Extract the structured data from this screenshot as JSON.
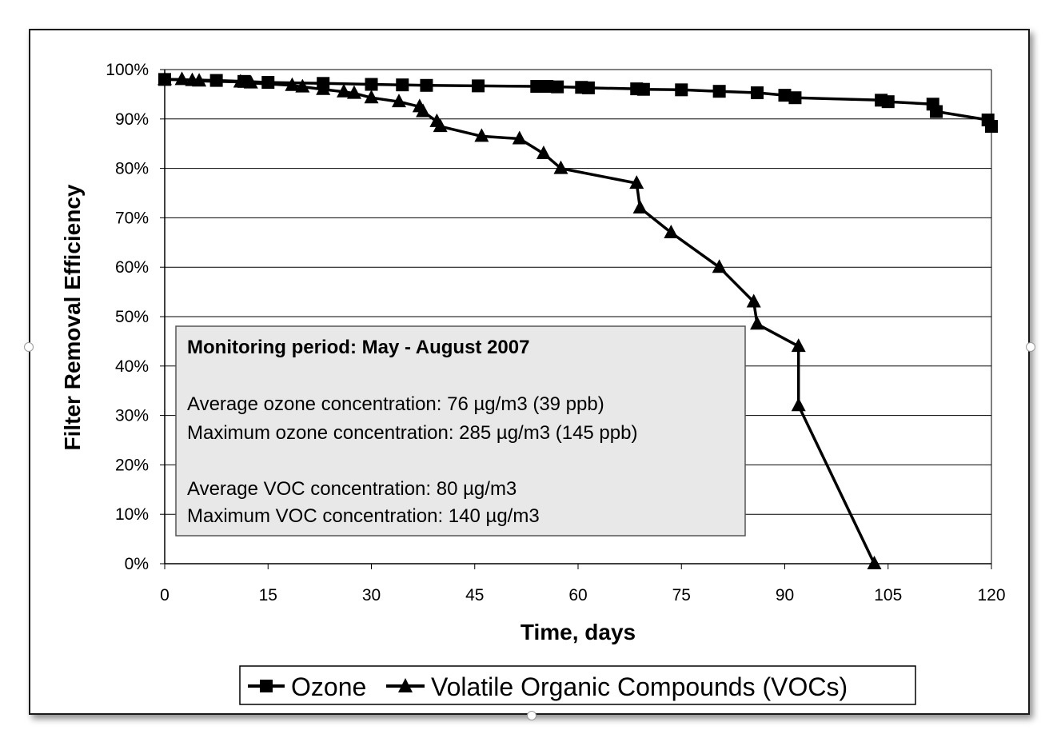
{
  "chart_data": {
    "type": "line",
    "title": "",
    "xlabel": "Time, days",
    "ylabel": "Filter Removal Efficiency",
    "xlim": [
      0,
      120
    ],
    "ylim": [
      0,
      100
    ],
    "x_ticks": [
      0,
      15,
      30,
      45,
      60,
      75,
      90,
      105,
      120
    ],
    "x_tick_labels": [
      "0",
      "15",
      "30",
      "45",
      "60",
      "75",
      "90",
      "105",
      "120"
    ],
    "y_ticks": [
      0,
      10,
      20,
      30,
      40,
      50,
      60,
      70,
      80,
      90,
      100
    ],
    "y_tick_labels": [
      "0%",
      "10%",
      "20%",
      "30%",
      "40%",
      "50%",
      "60%",
      "70%",
      "80%",
      "90%",
      "100%"
    ],
    "grid": "horizontal",
    "legend_position": "bottom",
    "series": [
      {
        "name": "Ozone",
        "marker": "square",
        "points": [
          [
            0,
            98
          ],
          [
            7.5,
            97.8
          ],
          [
            11.5,
            97.6
          ],
          [
            15,
            97.4
          ],
          [
            23,
            97.2
          ],
          [
            30,
            97
          ],
          [
            34.5,
            96.9
          ],
          [
            38,
            96.8
          ],
          [
            45.5,
            96.7
          ],
          [
            54,
            96.6
          ],
          [
            55.5,
            96.6
          ],
          [
            57,
            96.5
          ],
          [
            60.5,
            96.4
          ],
          [
            61.5,
            96.3
          ],
          [
            68.5,
            96.1
          ],
          [
            69.5,
            96
          ],
          [
            75,
            95.9
          ],
          [
            80.5,
            95.6
          ],
          [
            86,
            95.3
          ],
          [
            90,
            94.8
          ],
          [
            91.5,
            94.3
          ],
          [
            104,
            93.8
          ],
          [
            105,
            93.5
          ],
          [
            111.5,
            93
          ],
          [
            112,
            91.5
          ],
          [
            119.5,
            89.8
          ],
          [
            120,
            88.5
          ]
        ]
      },
      {
        "name": "Volatile Organic Compounds (VOCs)",
        "marker": "triangle",
        "points": [
          [
            0,
            98
          ],
          [
            2.5,
            98
          ],
          [
            4,
            97.8
          ],
          [
            5,
            97.7
          ],
          [
            11,
            97.5
          ],
          [
            12.5,
            97.3
          ],
          [
            18.5,
            96.8
          ],
          [
            20,
            96.5
          ],
          [
            23,
            96
          ],
          [
            26,
            95.5
          ],
          [
            27.5,
            95.2
          ],
          [
            30,
            94.3
          ],
          [
            34,
            93.5
          ],
          [
            37,
            92.5
          ],
          [
            37.5,
            91.5
          ],
          [
            39.5,
            89.5
          ],
          [
            40,
            88.5
          ],
          [
            46,
            86.5
          ],
          [
            51.5,
            86
          ],
          [
            55,
            83
          ],
          [
            57.5,
            80
          ],
          [
            68.5,
            77
          ],
          [
            69,
            72
          ],
          [
            73.5,
            67
          ],
          [
            80.5,
            60
          ],
          [
            85.5,
            53
          ],
          [
            86,
            48.5
          ],
          [
            92,
            44
          ],
          [
            92,
            32
          ],
          [
            103,
            0
          ]
        ]
      }
    ],
    "annotation": {
      "heading": "Monitoring period: May - August 2007",
      "lines": [
        "Average ozone concentration: 76 µg/m3 (39 ppb)",
        "Maximum ozone concentration: 285 µg/m3 (145 ppb)",
        "",
        "Average VOC concentration: 80 µg/m3",
        "Maximum VOC concentration: 140 µg/m3"
      ]
    },
    "colors": {
      "line": "#000000",
      "grid": "#000000",
      "annotation_fill": "#e8e8e8",
      "annotation_border": "#555555"
    }
  }
}
